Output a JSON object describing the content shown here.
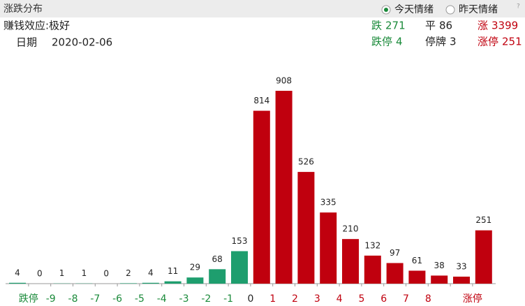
{
  "header": {
    "title": "涨跌分布",
    "options": [
      {
        "label": "今天情绪",
        "selected": true
      },
      {
        "label": "昨天情绪",
        "selected": false
      }
    ],
    "help": "?"
  },
  "info": {
    "effect": "赚钱效应:极好",
    "date_label": "日期",
    "date": "2020-02-06"
  },
  "stats": [
    {
      "label": "跌",
      "value": 271,
      "color": "#1a8a3a"
    },
    {
      "label": "平",
      "value": 86,
      "color": "#222222"
    },
    {
      "label": "涨",
      "value": 3399,
      "color": "#c0000e"
    },
    {
      "label": "跌停",
      "value": 4,
      "color": "#1a8a3a"
    },
    {
      "label": "停牌",
      "value": 3,
      "color": "#222222"
    },
    {
      "label": "涨停",
      "value": 251,
      "color": "#c0000e"
    }
  ],
  "chart_data": {
    "type": "bar",
    "values": [
      4,
      0,
      1,
      1,
      0,
      2,
      4,
      11,
      29,
      68,
      153,
      814,
      908,
      526,
      335,
      210,
      132,
      97,
      61,
      38,
      33,
      251
    ],
    "colors": [
      "#1e9e6e",
      "#1e9e6e",
      "#1e9e6e",
      "#1e9e6e",
      "#1e9e6e",
      "#1e9e6e",
      "#1e9e6e",
      "#1e9e6e",
      "#1e9e6e",
      "#1e9e6e",
      "#1e9e6e",
      "#c0000e",
      "#c0000e",
      "#c0000e",
      "#c0000e",
      "#c0000e",
      "#c0000e",
      "#c0000e",
      "#c0000e",
      "#c0000e",
      "#c0000e",
      "#c0000e"
    ],
    "tick_labels": [
      "跌停",
      "-9",
      "-8",
      "-7",
      "-6",
      "-5",
      "-4",
      "-3",
      "-2",
      "-1",
      "0",
      "1",
      "2",
      "3",
      "4",
      "5",
      "6",
      "7",
      "8",
      null,
      "涨停"
    ],
    "tick_colors": [
      "#1a8a3a",
      "#1a8a3a",
      "#1a8a3a",
      "#1a8a3a",
      "#1a8a3a",
      "#1a8a3a",
      "#1a8a3a",
      "#1a8a3a",
      "#1a8a3a",
      "#1a8a3a",
      "#222222",
      "#c0000e",
      "#c0000e",
      "#c0000e",
      "#c0000e",
      "#c0000e",
      "#c0000e",
      "#c0000e",
      "#c0000e",
      "#c0000e",
      "#c0000e"
    ],
    "ylim": [
      0,
      1000
    ]
  }
}
